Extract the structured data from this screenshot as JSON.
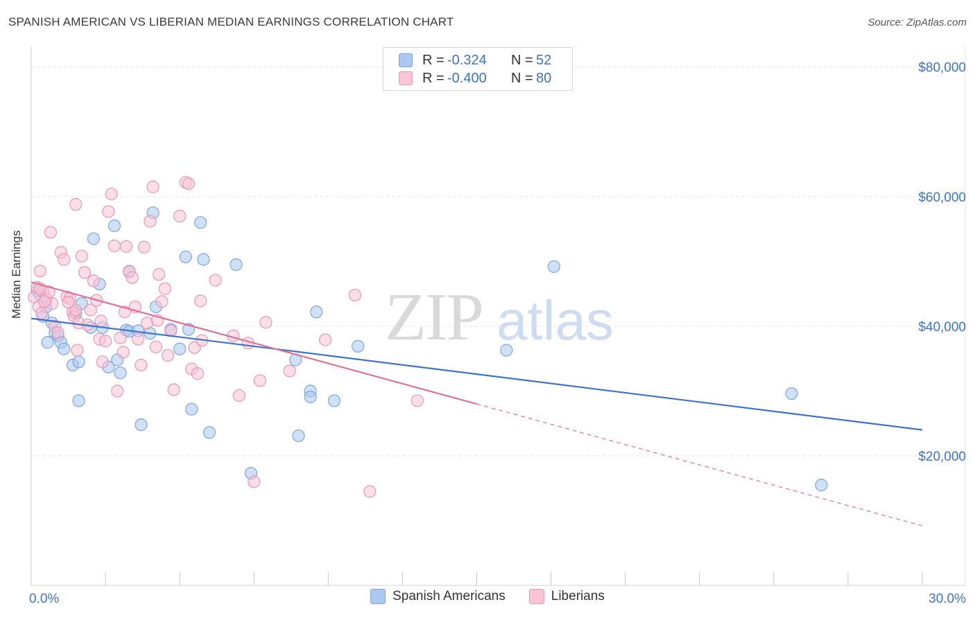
{
  "title": "SPANISH AMERICAN VS LIBERIAN MEDIAN EARNINGS CORRELATION CHART",
  "source": "Source: ZipAtlas.com",
  "watermark": {
    "zip": "ZIP",
    "atlas": "atlas"
  },
  "legend": {
    "rows": [
      {
        "r_label": "R =",
        "r_value": "-0.324",
        "n_label": "N =",
        "n_value": "52",
        "color": "#aac8f0",
        "stroke": "#7aa6dc"
      },
      {
        "r_label": "R =",
        "r_value": "-0.400",
        "n_label": "N =",
        "n_value": "80",
        "color": "#f8c4d6",
        "stroke": "#e896b4"
      }
    ],
    "bottom": [
      {
        "label": "Spanish Americans",
        "color": "#aac8f0",
        "stroke": "#7aa6dc"
      },
      {
        "label": "Liberians",
        "color": "#f8c4d6",
        "stroke": "#e896b4"
      }
    ]
  },
  "chart_data": {
    "type": "scatter",
    "title": "SPANISH AMERICAN VS LIBERIAN MEDIAN EARNINGS CORRELATION CHART",
    "xlabel": "",
    "ylabel": "Median Earnings",
    "xlim": [
      0,
      30
    ],
    "ylim": [
      0,
      82000
    ],
    "x_tick_labels": [
      "0.0%",
      "30.0%"
    ],
    "y_ticks": [
      20000,
      40000,
      60000,
      80000
    ],
    "y_tick_labels": [
      "$20,000",
      "$40,000",
      "$60,000",
      "$80,000"
    ],
    "grid": true,
    "legend_position": "top-center",
    "series": [
      {
        "name": "Spanish Americans",
        "color": "#3c72c8",
        "fill": "#aac8f0",
        "points": [
          [
            0.2,
            45500
          ],
          [
            0.3,
            44800
          ],
          [
            0.4,
            41500
          ],
          [
            0.5,
            43000
          ],
          [
            0.55,
            37500
          ],
          [
            0.7,
            40500
          ],
          [
            0.8,
            39000
          ],
          [
            0.9,
            38500
          ],
          [
            1.0,
            37500
          ],
          [
            1.1,
            36500
          ],
          [
            1.4,
            34000
          ],
          [
            1.5,
            42000
          ],
          [
            1.6,
            34500
          ],
          [
            1.7,
            43500
          ],
          [
            1.6,
            28500
          ],
          [
            2.0,
            39800
          ],
          [
            2.1,
            53500
          ],
          [
            2.3,
            46500
          ],
          [
            2.4,
            39800
          ],
          [
            2.6,
            33700
          ],
          [
            2.8,
            55500
          ],
          [
            2.9,
            34800
          ],
          [
            3.0,
            32800
          ],
          [
            3.2,
            39400
          ],
          [
            3.3,
            39200
          ],
          [
            3.3,
            48400
          ],
          [
            3.6,
            39300
          ],
          [
            3.7,
            24800
          ],
          [
            4.0,
            38900
          ],
          [
            4.1,
            57500
          ],
          [
            4.2,
            43000
          ],
          [
            4.7,
            39500
          ],
          [
            5.0,
            36500
          ],
          [
            5.2,
            50700
          ],
          [
            5.3,
            39500
          ],
          [
            5.4,
            27200
          ],
          [
            5.7,
            56000
          ],
          [
            5.8,
            50300
          ],
          [
            6.0,
            23600
          ],
          [
            6.9,
            49500
          ],
          [
            7.4,
            17300
          ],
          [
            8.9,
            34800
          ],
          [
            9.0,
            23100
          ],
          [
            9.4,
            30000
          ],
          [
            9.4,
            29100
          ],
          [
            9.6,
            42200
          ],
          [
            10.2,
            28500
          ],
          [
            11.0,
            36900
          ],
          [
            16.0,
            36300
          ],
          [
            17.6,
            49200
          ],
          [
            25.6,
            29600
          ],
          [
            26.6,
            15500
          ]
        ],
        "trend": {
          "x": [
            0,
            30
          ],
          "y": [
            41200,
            24000
          ],
          "style": "solid"
        }
      },
      {
        "name": "Liberians",
        "color": "#e06f98",
        "fill": "#f8c4d6",
        "points": [
          [
            0.1,
            44500
          ],
          [
            0.2,
            46000
          ],
          [
            0.25,
            43000
          ],
          [
            0.3,
            48500
          ],
          [
            0.35,
            42000
          ],
          [
            0.4,
            45300
          ],
          [
            0.5,
            44200
          ],
          [
            0.6,
            45300
          ],
          [
            0.65,
            54500
          ],
          [
            0.7,
            43500
          ],
          [
            0.8,
            40000
          ],
          [
            0.9,
            39000
          ],
          [
            1.0,
            51400
          ],
          [
            1.1,
            50300
          ],
          [
            1.2,
            44500
          ],
          [
            1.3,
            44300
          ],
          [
            1.4,
            42200
          ],
          [
            1.45,
            41500
          ],
          [
            1.5,
            42500
          ],
          [
            1.55,
            36300
          ],
          [
            1.5,
            58800
          ],
          [
            1.6,
            40500
          ],
          [
            1.7,
            50800
          ],
          [
            1.8,
            48300
          ],
          [
            1.9,
            40200
          ],
          [
            2.0,
            42500
          ],
          [
            2.1,
            47000
          ],
          [
            2.2,
            44000
          ],
          [
            2.3,
            38000
          ],
          [
            2.4,
            34500
          ],
          [
            2.5,
            37700
          ],
          [
            2.6,
            57700
          ],
          [
            2.7,
            60400
          ],
          [
            2.8,
            52400
          ],
          [
            2.9,
            30000
          ],
          [
            3.0,
            38200
          ],
          [
            3.1,
            36000
          ],
          [
            3.2,
            52300
          ],
          [
            3.3,
            48500
          ],
          [
            3.4,
            47500
          ],
          [
            3.5,
            43000
          ],
          [
            3.6,
            38000
          ],
          [
            3.7,
            34000
          ],
          [
            3.8,
            52200
          ],
          [
            3.9,
            40500
          ],
          [
            4.0,
            56200
          ],
          [
            4.1,
            61500
          ],
          [
            4.2,
            36800
          ],
          [
            4.3,
            48000
          ],
          [
            4.4,
            43800
          ],
          [
            4.5,
            45800
          ],
          [
            4.6,
            35500
          ],
          [
            4.7,
            39300
          ],
          [
            4.8,
            30200
          ],
          [
            5.0,
            57000
          ],
          [
            5.2,
            62200
          ],
          [
            5.3,
            62000
          ],
          [
            5.4,
            33400
          ],
          [
            5.5,
            36700
          ],
          [
            5.6,
            32700
          ],
          [
            5.7,
            43900
          ],
          [
            6.2,
            47100
          ],
          [
            7.0,
            29300
          ],
          [
            7.3,
            37400
          ],
          [
            7.5,
            16000
          ],
          [
            7.7,
            31600
          ],
          [
            7.9,
            40600
          ],
          [
            8.7,
            33100
          ],
          [
            9.9,
            37900
          ],
          [
            10.9,
            44800
          ],
          [
            11.4,
            14500
          ],
          [
            13.0,
            28500
          ],
          [
            0.3,
            45800
          ],
          [
            0.45,
            43800
          ],
          [
            1.25,
            43700
          ],
          [
            2.35,
            40800
          ],
          [
            3.15,
            42200
          ],
          [
            4.25,
            40900
          ],
          [
            5.75,
            37800
          ],
          [
            6.8,
            38500
          ]
        ],
        "trend": {
          "x": [
            0,
            15
          ],
          "y": [
            46800,
            28000
          ],
          "style": "solid"
        },
        "trend_extension": {
          "x": [
            15,
            30
          ],
          "y": [
            28000,
            9200
          ],
          "style": "dashed"
        }
      }
    ]
  }
}
